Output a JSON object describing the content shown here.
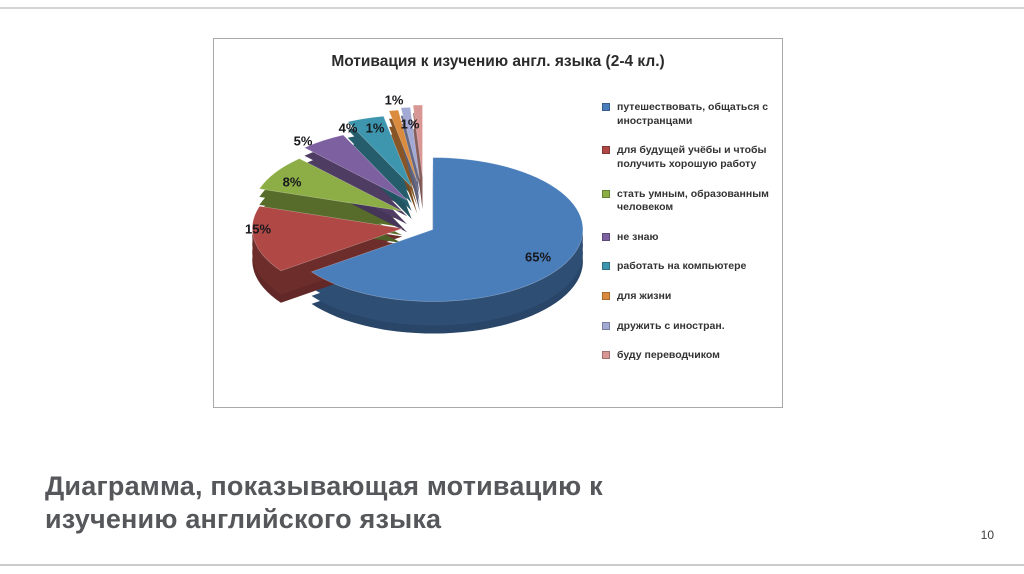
{
  "page_number": "10",
  "caption": {
    "line1": "Диаграмма, показывающая мотивацию к",
    "line2": "изучению английского языка"
  },
  "chart_data": {
    "type": "pie",
    "style": "3d-exploded",
    "title": "Мотивация к изучению англ. языка (2-4 кл.)",
    "legend_position": "right",
    "unit": "%",
    "slices": [
      {
        "label": "путешествовать, общаться с иностранцами",
        "value": 65,
        "color": "#4A7EBB"
      },
      {
        "label": "для будущей учёбы и чтобы получить хорошую работу",
        "value": 15,
        "color": "#B04946"
      },
      {
        "label": "стать умным, образованным человеком",
        "value": 8,
        "color": "#8DAE46"
      },
      {
        "label": "не знаю",
        "value": 5,
        "color": "#7D60A0"
      },
      {
        "label": "работать на компьютере",
        "value": 4,
        "color": "#3D96AE"
      },
      {
        "label": "для жизни",
        "value": 1,
        "color": "#DB8B3D"
      },
      {
        "label": "дружить с иностран.",
        "value": 1,
        "color": "#A3A9D5"
      },
      {
        "label": "буду переводчиком",
        "value": 1,
        "color": "#D89795"
      }
    ]
  }
}
